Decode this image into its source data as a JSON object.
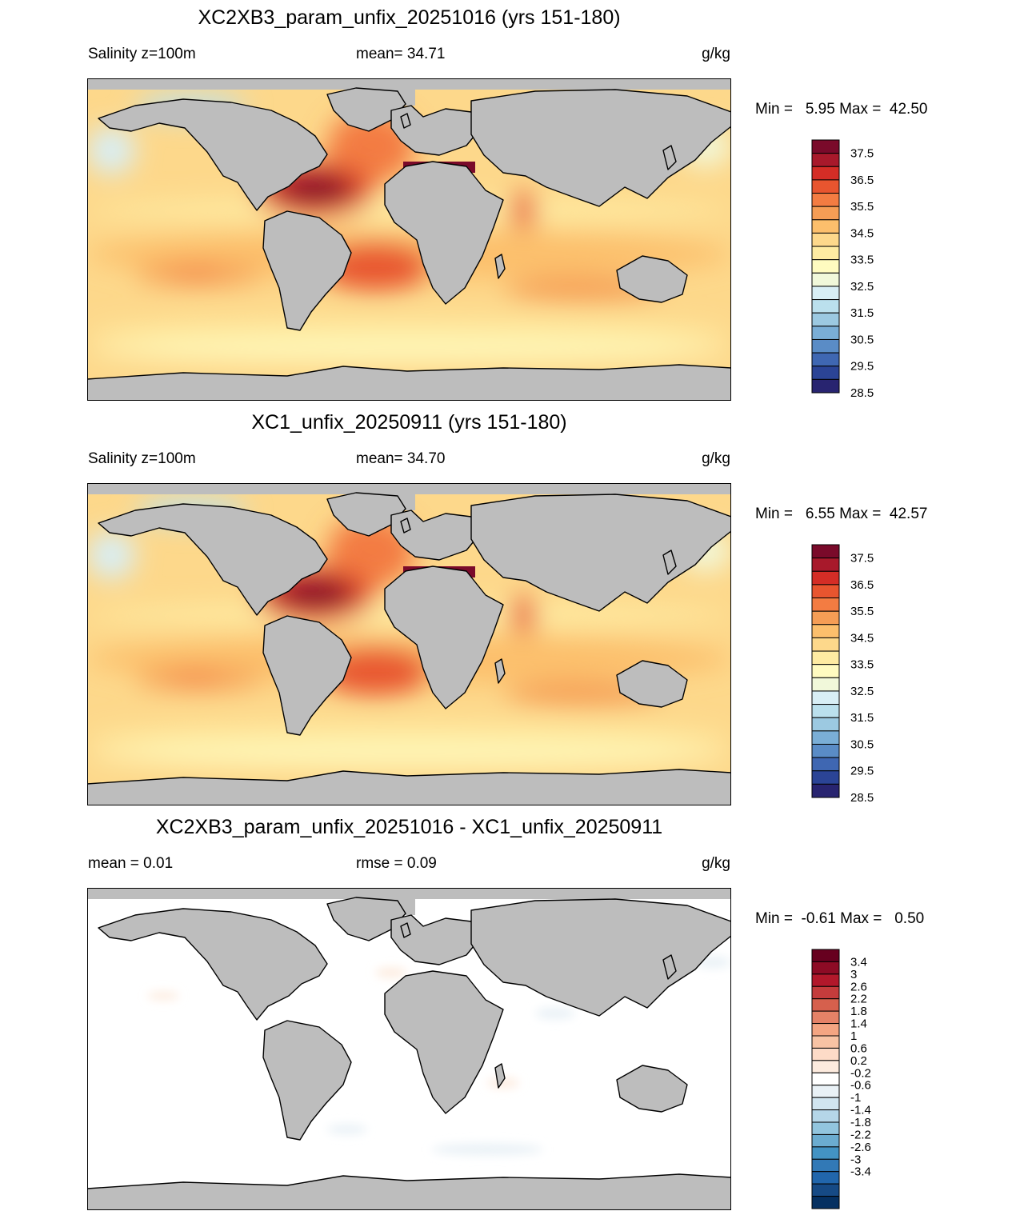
{
  "panels": [
    {
      "id": "p1",
      "title": "XC2XB3_param_unfix_20251016 (yrs 151-180)",
      "left_label": "Salinity z=100m",
      "mid_label": "mean=  34.71",
      "units": "g/kg",
      "minmax": "Min =   5.95 Max =  42.50",
      "kind": "salinity"
    },
    {
      "id": "p2",
      "title": "XC1_unfix_20250911 (yrs 151-180)",
      "left_label": "Salinity z=100m",
      "mid_label": "mean=  34.70",
      "units": "g/kg",
      "minmax": "Min =   6.55 Max =  42.57",
      "kind": "salinity"
    },
    {
      "id": "p3",
      "title": "XC2XB3_param_unfix_20251016 - XC1_unfix_20250911",
      "left_label": "mean =   0.01",
      "mid_label": "rmse =   0.09",
      "units": "g/kg",
      "minmax": "Min =  -0.61 Max =   0.50",
      "kind": "diff"
    }
  ],
  "salinity_colorbar": {
    "colors": [
      "#7a0a2a",
      "#a8192b",
      "#d42d26",
      "#e8552f",
      "#f37c42",
      "#f59d55",
      "#fcbf6c",
      "#fdd88b",
      "#feeba2",
      "#fffbc0",
      "#f1f8da",
      "#d8eef5",
      "#bbe0ed",
      "#9cc9e1",
      "#7aaed6",
      "#5a8cc6",
      "#3f67b2",
      "#2b4496",
      "#282470"
    ],
    "ticks": [
      "37.5",
      "36.5",
      "35.5",
      "34.5",
      "33.5",
      "32.5",
      "31.5",
      "30.5",
      "29.5",
      "28.5"
    ]
  },
  "diff_colorbar": {
    "colors": [
      "#67001f",
      "#8d0b25",
      "#b2182b",
      "#c43c3c",
      "#d6604d",
      "#e58267",
      "#f4a582",
      "#f8c3a4",
      "#fddbc7",
      "#fdebde",
      "#ffffff",
      "#e9f1f6",
      "#d1e5f0",
      "#b5d6e8",
      "#92c5de",
      "#6bacd0",
      "#4393c3",
      "#3279b6",
      "#2166ac",
      "#164a85",
      "#053061"
    ],
    "ticks": [
      "3.4",
      "3",
      "2.6",
      "2.2",
      "1.8",
      "1.4",
      "1",
      "0.6",
      "0.2",
      "-0.2",
      "-0.6",
      "-1",
      "-1.4",
      "-1.8",
      "-2.2",
      "-2.6",
      "-3",
      "-3.4"
    ]
  }
}
